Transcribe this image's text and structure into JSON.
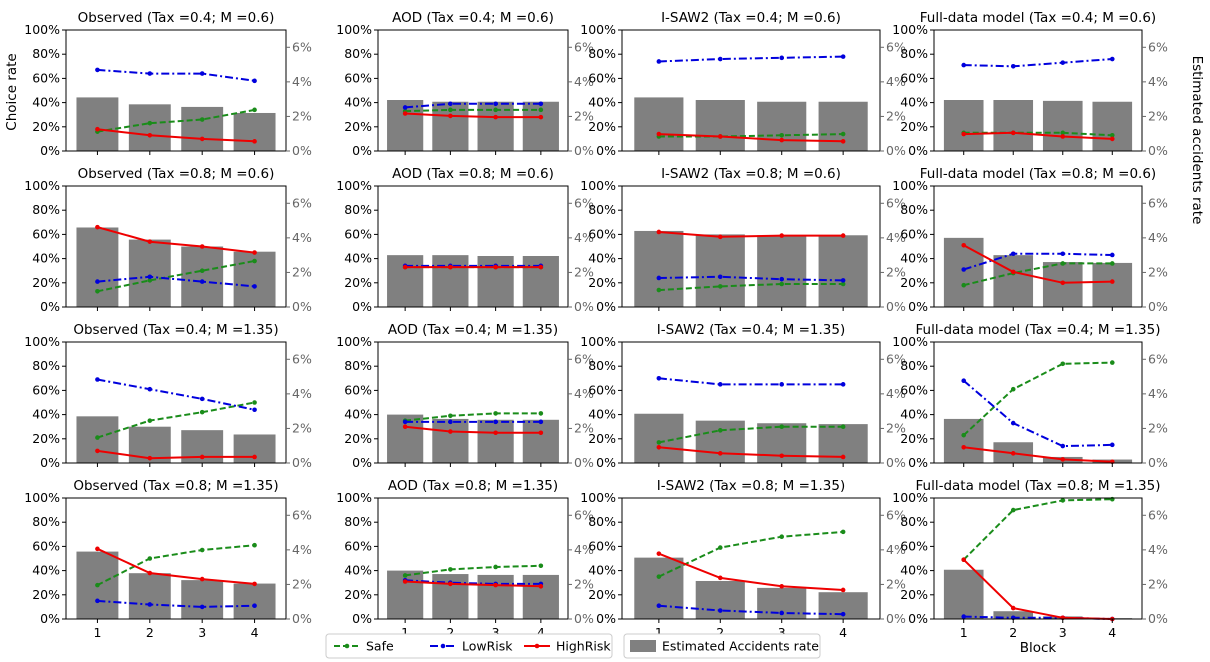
{
  "figure": {
    "ylabel_left": "Choice rate",
    "ylabel_right": "Estimated accidents rate",
    "xlabel": "Block"
  },
  "legend": {
    "placement": "bottom-center",
    "items": [
      {
        "label": "Safe",
        "color": "#1a8c1a",
        "style": "dashed"
      },
      {
        "label": "LowRisk",
        "color": "#0000dd",
        "style": "dashdot"
      },
      {
        "label": "HighRisk",
        "color": "#ee0000",
        "style": "solid"
      },
      {
        "label": "Estimated Accidents rate",
        "color": "#808080",
        "style": "bar"
      }
    ]
  },
  "colors": {
    "safe": "#1a8c1a",
    "lowrisk": "#0000dd",
    "highrisk": "#ee0000",
    "bars": "#808080",
    "right_axis": "#666666"
  },
  "chart_data": [
    {
      "type": "line+bar",
      "title": "Observed (Tax =0.4; M =0.6)",
      "x": [
        1,
        2,
        3,
        4
      ],
      "series": [
        {
          "name": "Safe",
          "values": [
            0.16,
            0.23,
            0.26,
            0.34
          ]
        },
        {
          "name": "LowRisk",
          "values": [
            0.67,
            0.64,
            0.64,
            0.58
          ]
        },
        {
          "name": "HighRisk",
          "values": [
            0.18,
            0.13,
            0.1,
            0.08
          ]
        }
      ],
      "bars": [
        3.1,
        2.7,
        2.55,
        2.2
      ],
      "ylim": [
        0,
        1
      ],
      "ylim_right": [
        0,
        7
      ],
      "yticks": [
        "0%",
        "20%",
        "40%",
        "60%",
        "80%",
        "100%"
      ],
      "yticks_right": [
        "0%",
        "2%",
        "4%",
        "6%"
      ],
      "xticks": [
        "1",
        "2",
        "3",
        "4"
      ]
    },
    {
      "type": "line+bar",
      "title": "AOD (Tax =0.4; M =0.6)",
      "x": [
        1,
        2,
        3,
        4
      ],
      "series": [
        {
          "name": "Safe",
          "values": [
            0.33,
            0.34,
            0.34,
            0.34
          ]
        },
        {
          "name": "LowRisk",
          "values": [
            0.36,
            0.39,
            0.39,
            0.39
          ]
        },
        {
          "name": "HighRisk",
          "values": [
            0.31,
            0.29,
            0.28,
            0.28
          ]
        }
      ],
      "bars": [
        2.95,
        2.85,
        2.85,
        2.85
      ],
      "ylim": [
        0,
        1
      ],
      "ylim_right": [
        0,
        7
      ],
      "yticks": [
        "0%",
        "20%",
        "40%",
        "60%",
        "80%",
        "100%"
      ],
      "yticks_right": [
        "0%",
        "2%",
        "4%",
        "6%"
      ],
      "xticks": [
        "1",
        "2",
        "3",
        "4"
      ]
    },
    {
      "type": "line+bar",
      "title": "I-SAW2 (Tax =0.4; M =0.6)",
      "x": [
        1,
        2,
        3,
        4
      ],
      "series": [
        {
          "name": "Safe",
          "values": [
            0.12,
            0.12,
            0.13,
            0.14
          ]
        },
        {
          "name": "LowRisk",
          "values": [
            0.74,
            0.76,
            0.77,
            0.78
          ]
        },
        {
          "name": "HighRisk",
          "values": [
            0.14,
            0.12,
            0.09,
            0.08
          ]
        }
      ],
      "bars": [
        3.1,
        2.95,
        2.85,
        2.85
      ],
      "ylim": [
        0,
        1
      ],
      "ylim_right": [
        0,
        7
      ],
      "yticks": [
        "0%",
        "20%",
        "40%",
        "60%",
        "80%",
        "100%"
      ],
      "yticks_right": [
        "0%",
        "2%",
        "4%",
        "6%"
      ],
      "xticks": [
        "1",
        "2",
        "3",
        "4"
      ]
    },
    {
      "type": "line+bar",
      "title": "Full-data model (Tax =0.4; M =0.6)",
      "x": [
        1,
        2,
        3,
        4
      ],
      "series": [
        {
          "name": "Safe",
          "values": [
            0.15,
            0.15,
            0.15,
            0.13
          ]
        },
        {
          "name": "LowRisk",
          "values": [
            0.71,
            0.7,
            0.73,
            0.76
          ]
        },
        {
          "name": "HighRisk",
          "values": [
            0.14,
            0.15,
            0.12,
            0.1
          ]
        }
      ],
      "bars": [
        2.95,
        2.95,
        2.9,
        2.85
      ],
      "ylim": [
        0,
        1
      ],
      "ylim_right": [
        0,
        7
      ],
      "yticks": [
        "0%",
        "20%",
        "40%",
        "60%",
        "80%",
        "100%"
      ],
      "yticks_right": [
        "0%",
        "2%",
        "4%",
        "6%"
      ],
      "xticks": [
        "1",
        "2",
        "3",
        "4"
      ]
    },
    {
      "type": "line+bar",
      "title": "Observed (Tax =0.8; M =0.6)",
      "x": [
        1,
        2,
        3,
        4
      ],
      "series": [
        {
          "name": "Safe",
          "values": [
            0.13,
            0.22,
            0.3,
            0.38
          ]
        },
        {
          "name": "LowRisk",
          "values": [
            0.21,
            0.25,
            0.21,
            0.17
          ]
        },
        {
          "name": "HighRisk",
          "values": [
            0.66,
            0.54,
            0.5,
            0.45
          ]
        }
      ],
      "bars": [
        4.6,
        3.9,
        3.5,
        3.2
      ],
      "ylim": [
        0,
        1
      ],
      "ylim_right": [
        0,
        7
      ],
      "yticks": [
        "0%",
        "20%",
        "40%",
        "60%",
        "80%",
        "100%"
      ],
      "yticks_right": [
        "0%",
        "2%",
        "4%",
        "6%"
      ],
      "xticks": [
        "1",
        "2",
        "3",
        "4"
      ]
    },
    {
      "type": "line+bar",
      "title": "AOD (Tax =0.8; M =0.6)",
      "x": [
        1,
        2,
        3,
        4
      ],
      "series": [
        {
          "name": "Safe",
          "values": [
            0.33,
            0.33,
            0.33,
            0.33
          ]
        },
        {
          "name": "LowRisk",
          "values": [
            0.34,
            0.34,
            0.34,
            0.34
          ]
        },
        {
          "name": "HighRisk",
          "values": [
            0.33,
            0.33,
            0.33,
            0.33
          ]
        }
      ],
      "bars": [
        3.0,
        3.0,
        2.95,
        2.95
      ],
      "ylim": [
        0,
        1
      ],
      "ylim_right": [
        0,
        7
      ],
      "yticks": [
        "0%",
        "20%",
        "40%",
        "60%",
        "80%",
        "100%"
      ],
      "yticks_right": [
        "0%",
        "2%",
        "4%",
        "6%"
      ],
      "xticks": [
        "1",
        "2",
        "3",
        "4"
      ]
    },
    {
      "type": "line+bar",
      "title": "I-SAW2 (Tax =0.8; M =0.6)",
      "x": [
        1,
        2,
        3,
        4
      ],
      "series": [
        {
          "name": "Safe",
          "values": [
            0.14,
            0.17,
            0.19,
            0.19
          ]
        },
        {
          "name": "LowRisk",
          "values": [
            0.24,
            0.25,
            0.23,
            0.22
          ]
        },
        {
          "name": "HighRisk",
          "values": [
            0.62,
            0.58,
            0.59,
            0.59
          ]
        }
      ],
      "bars": [
        4.4,
        4.2,
        4.15,
        4.15
      ],
      "ylim": [
        0,
        1
      ],
      "ylim_right": [
        0,
        7
      ],
      "yticks": [
        "0%",
        "20%",
        "40%",
        "60%",
        "80%",
        "100%"
      ],
      "yticks_right": [
        "0%",
        "2%",
        "4%",
        "6%"
      ],
      "xticks": [
        "1",
        "2",
        "3",
        "4"
      ]
    },
    {
      "type": "line+bar",
      "title": "Full-data model (Tax =0.8; M =0.6)",
      "x": [
        1,
        2,
        3,
        4
      ],
      "series": [
        {
          "name": "Safe",
          "values": [
            0.18,
            0.28,
            0.36,
            0.36
          ]
        },
        {
          "name": "LowRisk",
          "values": [
            0.31,
            0.44,
            0.44,
            0.43
          ]
        },
        {
          "name": "HighRisk",
          "values": [
            0.51,
            0.29,
            0.2,
            0.21
          ]
        }
      ],
      "bars": [
        4.0,
        3.0,
        2.6,
        2.55
      ],
      "ylim": [
        0,
        1
      ],
      "ylim_right": [
        0,
        7
      ],
      "yticks": [
        "0%",
        "20%",
        "40%",
        "60%",
        "80%",
        "100%"
      ],
      "yticks_right": [
        "0%",
        "2%",
        "4%",
        "6%"
      ],
      "xticks": [
        "1",
        "2",
        "3",
        "4"
      ]
    },
    {
      "type": "line+bar",
      "title": "Observed (Tax =0.4; M =1.35)",
      "x": [
        1,
        2,
        3,
        4
      ],
      "series": [
        {
          "name": "Safe",
          "values": [
            0.21,
            0.35,
            0.42,
            0.5
          ]
        },
        {
          "name": "LowRisk",
          "values": [
            0.69,
            0.61,
            0.53,
            0.44
          ]
        },
        {
          "name": "HighRisk",
          "values": [
            0.1,
            0.04,
            0.05,
            0.05
          ]
        }
      ],
      "bars": [
        2.7,
        2.1,
        1.9,
        1.65
      ],
      "ylim": [
        0,
        1
      ],
      "ylim_right": [
        0,
        7
      ],
      "yticks": [
        "0%",
        "20%",
        "40%",
        "60%",
        "80%",
        "100%"
      ],
      "yticks_right": [
        "0%",
        "2%",
        "4%",
        "6%"
      ],
      "xticks": [
        "1",
        "2",
        "3",
        "4"
      ]
    },
    {
      "type": "line+bar",
      "title": "AOD (Tax =0.4; M =1.35)",
      "x": [
        1,
        2,
        3,
        4
      ],
      "series": [
        {
          "name": "Safe",
          "values": [
            0.35,
            0.39,
            0.41,
            0.41
          ]
        },
        {
          "name": "LowRisk",
          "values": [
            0.34,
            0.34,
            0.34,
            0.34
          ]
        },
        {
          "name": "HighRisk",
          "values": [
            0.3,
            0.26,
            0.25,
            0.25
          ]
        }
      ],
      "bars": [
        2.8,
        2.55,
        2.5,
        2.5
      ],
      "ylim": [
        0,
        1
      ],
      "ylim_right": [
        0,
        7
      ],
      "yticks": [
        "0%",
        "20%",
        "40%",
        "60%",
        "80%",
        "100%"
      ],
      "yticks_right": [
        "0%",
        "2%",
        "4%",
        "6%"
      ],
      "xticks": [
        "1",
        "2",
        "3",
        "4"
      ]
    },
    {
      "type": "line+bar",
      "title": "I-SAW2 (Tax =0.4; M =1.35)",
      "x": [
        1,
        2,
        3,
        4
      ],
      "series": [
        {
          "name": "Safe",
          "values": [
            0.17,
            0.27,
            0.3,
            0.3
          ]
        },
        {
          "name": "LowRisk",
          "values": [
            0.7,
            0.65,
            0.65,
            0.65
          ]
        },
        {
          "name": "HighRisk",
          "values": [
            0.13,
            0.08,
            0.06,
            0.05
          ]
        }
      ],
      "bars": [
        2.85,
        2.45,
        2.3,
        2.25
      ],
      "ylim": [
        0,
        1
      ],
      "ylim_right": [
        0,
        7
      ],
      "yticks": [
        "0%",
        "20%",
        "40%",
        "60%",
        "80%",
        "100%"
      ],
      "yticks_right": [
        "0%",
        "2%",
        "4%",
        "6%"
      ],
      "xticks": [
        "1",
        "2",
        "3",
        "4"
      ]
    },
    {
      "type": "line+bar",
      "title": "Full-data model (Tax =0.4; M =1.35)",
      "x": [
        1,
        2,
        3,
        4
      ],
      "series": [
        {
          "name": "Safe",
          "values": [
            0.23,
            0.61,
            0.82,
            0.83
          ]
        },
        {
          "name": "LowRisk",
          "values": [
            0.68,
            0.33,
            0.14,
            0.15
          ]
        },
        {
          "name": "HighRisk",
          "values": [
            0.13,
            0.08,
            0.03,
            0.01
          ]
        }
      ],
      "bars": [
        2.55,
        1.2,
        0.35,
        0.2
      ],
      "ylim": [
        0,
        1
      ],
      "ylim_right": [
        0,
        7
      ],
      "yticks": [
        "0%",
        "20%",
        "40%",
        "60%",
        "80%",
        "100%"
      ],
      "yticks_right": [
        "0%",
        "2%",
        "4%",
        "6%"
      ],
      "xticks": [
        "1",
        "2",
        "3",
        "4"
      ]
    },
    {
      "type": "line+bar",
      "title": "Observed (Tax =0.8; M =1.35)",
      "x": [
        1,
        2,
        3,
        4
      ],
      "series": [
        {
          "name": "Safe",
          "values": [
            0.28,
            0.5,
            0.57,
            0.61
          ]
        },
        {
          "name": "LowRisk",
          "values": [
            0.15,
            0.12,
            0.1,
            0.11
          ]
        },
        {
          "name": "HighRisk",
          "values": [
            0.58,
            0.38,
            0.33,
            0.29
          ]
        }
      ],
      "bars": [
        3.9,
        2.65,
        2.25,
        2.05
      ],
      "ylim": [
        0,
        1
      ],
      "ylim_right": [
        0,
        7
      ],
      "yticks": [
        "0%",
        "20%",
        "40%",
        "60%",
        "80%",
        "100%"
      ],
      "yticks_right": [
        "0%",
        "2%",
        "4%",
        "6%"
      ],
      "xticks": [
        "1",
        "2",
        "3",
        "4"
      ]
    },
    {
      "type": "line+bar",
      "title": "AOD (Tax =0.8; M =1.35)",
      "x": [
        1,
        2,
        3,
        4
      ],
      "series": [
        {
          "name": "Safe",
          "values": [
            0.36,
            0.41,
            0.43,
            0.44
          ]
        },
        {
          "name": "LowRisk",
          "values": [
            0.32,
            0.3,
            0.29,
            0.29
          ]
        },
        {
          "name": "HighRisk",
          "values": [
            0.31,
            0.29,
            0.28,
            0.27
          ]
        }
      ],
      "bars": [
        2.8,
        2.6,
        2.55,
        2.55
      ],
      "ylim": [
        0,
        1
      ],
      "ylim_right": [
        0,
        7
      ],
      "yticks": [
        "0%",
        "20%",
        "40%",
        "60%",
        "80%",
        "100%"
      ],
      "yticks_right": [
        "0%",
        "2%",
        "4%",
        "6%"
      ],
      "xticks": [
        "1",
        "2",
        "3",
        "4"
      ]
    },
    {
      "type": "line+bar",
      "title": "I-SAW2 (Tax =0.8; M =1.35)",
      "x": [
        1,
        2,
        3,
        4
      ],
      "series": [
        {
          "name": "Safe",
          "values": [
            0.35,
            0.59,
            0.68,
            0.72
          ]
        },
        {
          "name": "LowRisk",
          "values": [
            0.11,
            0.07,
            0.05,
            0.04
          ]
        },
        {
          "name": "HighRisk",
          "values": [
            0.54,
            0.34,
            0.27,
            0.24
          ]
        }
      ],
      "bars": [
        3.55,
        2.2,
        1.8,
        1.55
      ],
      "ylim": [
        0,
        1
      ],
      "ylim_right": [
        0,
        7
      ],
      "yticks": [
        "0%",
        "20%",
        "40%",
        "60%",
        "80%",
        "100%"
      ],
      "yticks_right": [
        "0%",
        "2%",
        "4%",
        "6%"
      ],
      "xticks": [
        "1",
        "2",
        "3",
        "4"
      ]
    },
    {
      "type": "line+bar",
      "title": "Full-data model (Tax =0.8; M =1.35)",
      "x": [
        1,
        2,
        3,
        4
      ],
      "series": [
        {
          "name": "Safe",
          "values": [
            0.49,
            0.9,
            0.98,
            0.99
          ]
        },
        {
          "name": "LowRisk",
          "values": [
            0.02,
            0.01,
            0.01,
            0.0
          ]
        },
        {
          "name": "HighRisk",
          "values": [
            0.49,
            0.09,
            0.01,
            0.0
          ]
        }
      ],
      "bars": [
        2.85,
        0.45,
        0.15,
        0.05
      ],
      "ylim": [
        0,
        1
      ],
      "ylim_right": [
        0,
        7
      ],
      "yticks": [
        "0%",
        "20%",
        "40%",
        "60%",
        "80%",
        "100%"
      ],
      "yticks_right": [
        "0%",
        "2%",
        "4%",
        "6%"
      ],
      "xticks": [
        "1",
        "2",
        "3",
        "4"
      ]
    }
  ]
}
